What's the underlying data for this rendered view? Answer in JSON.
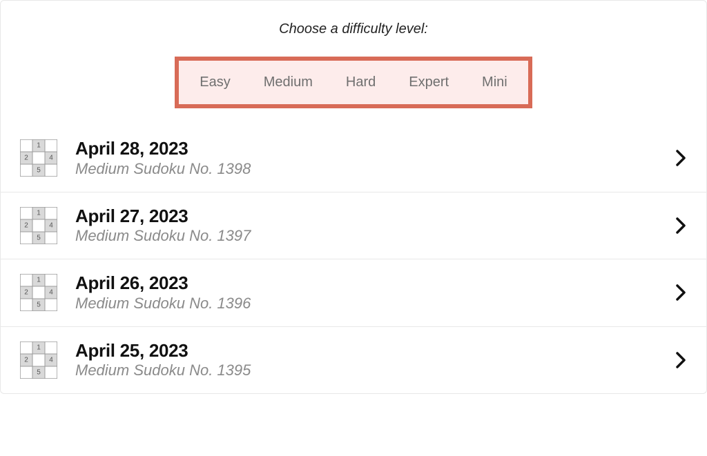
{
  "header": {
    "prompt": "Choose a difficulty level:",
    "highlight_border_color": "#d86b57",
    "highlight_bg_color": "#fdeceb",
    "tabs": [
      {
        "label": "Easy"
      },
      {
        "label": "Medium"
      },
      {
        "label": "Hard"
      },
      {
        "label": "Expert"
      },
      {
        "label": "Mini"
      }
    ]
  },
  "thumb_icon": {
    "grid_line_color": "#9c9c9c",
    "filled_cell_color": "#d9d9d9",
    "digit_color": "#555555",
    "cells": [
      {
        "r": 0,
        "c": 1,
        "d": "1"
      },
      {
        "r": 1,
        "c": 0,
        "d": "2"
      },
      {
        "r": 1,
        "c": 2,
        "d": "4"
      },
      {
        "r": 2,
        "c": 1,
        "d": "5"
      }
    ]
  },
  "puzzles": [
    {
      "date": "April 28, 2023",
      "subtitle": "Medium Sudoku No. 1398"
    },
    {
      "date": "April 27, 2023",
      "subtitle": "Medium Sudoku No. 1397"
    },
    {
      "date": "April 26, 2023",
      "subtitle": "Medium Sudoku No. 1396"
    },
    {
      "date": "April 25, 2023",
      "subtitle": "Medium Sudoku No. 1395"
    }
  ],
  "colors": {
    "row_divider": "#e8e8e8",
    "title_text": "#111111",
    "subtitle_text": "#8a8a8a",
    "tab_text": "#6f6f6f"
  }
}
